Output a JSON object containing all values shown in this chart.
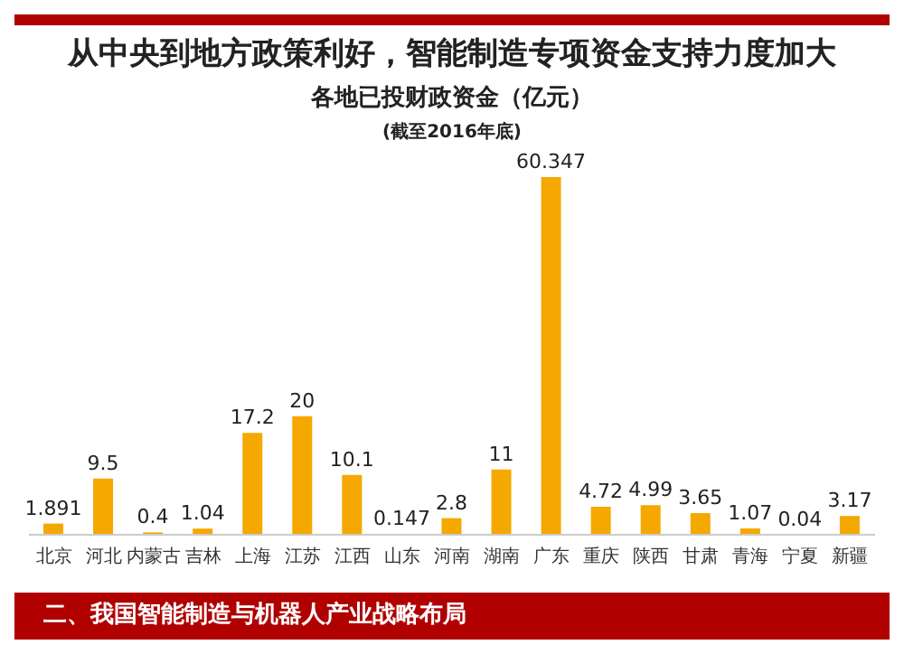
{
  "chart_data": {
    "type": "bar",
    "title": "从中央到地方政策利好，智能制造专项资金支持力度加大",
    "subtitle": "各地已投财政资金（亿元）",
    "annotations": [
      "(截至2016年底)",
      "二、我国智能制造与机器人产业战略布局"
    ],
    "categories": [
      "北京",
      "河北",
      "内蒙古",
      "吉林",
      "上海",
      "江苏",
      "江西",
      "山东",
      "河南",
      "湖南",
      "广东",
      "重庆",
      "陕西",
      "甘肃",
      "青海",
      "宁夏",
      "新疆"
    ],
    "values": [
      1.891,
      9.5,
      0.4,
      1.04,
      17.2,
      20,
      10.1,
      0.147,
      2.8,
      11,
      60.347,
      4.72,
      4.99,
      3.65,
      1.07,
      0.04,
      3.17
    ],
    "color": "#f5a800",
    "data_labels": true
  }
}
